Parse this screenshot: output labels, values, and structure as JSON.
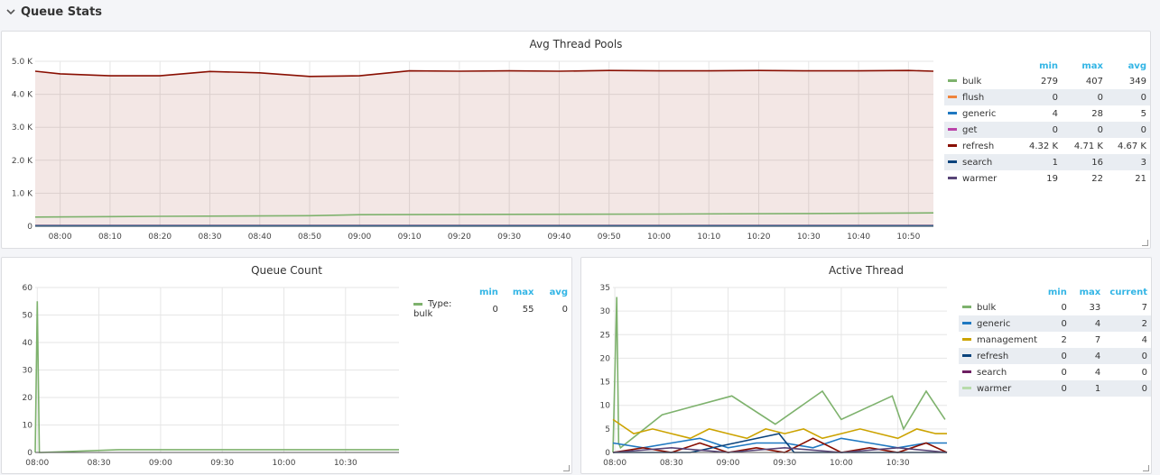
{
  "row": {
    "title": "Queue Stats"
  },
  "panels": {
    "avg_thread_pools": {
      "title": "Avg Thread Pools",
      "legend_headers": [
        "min",
        "max",
        "avg"
      ],
      "legend": [
        {
          "name": "bulk",
          "color": "#7eb26d",
          "min": "279",
          "max": "407",
          "avg": "349"
        },
        {
          "name": "flush",
          "color": "#ef843c",
          "min": "0",
          "max": "0",
          "avg": "0"
        },
        {
          "name": "generic",
          "color": "#1f78c1",
          "min": "4",
          "max": "28",
          "avg": "5"
        },
        {
          "name": "get",
          "color": "#ba43a9",
          "min": "0",
          "max": "0",
          "avg": "0"
        },
        {
          "name": "refresh",
          "color": "#890f02",
          "min": "4.32 K",
          "max": "4.71 K",
          "avg": "4.67 K"
        },
        {
          "name": "search",
          "color": "#0a437c",
          "min": "1",
          "max": "16",
          "avg": "3"
        },
        {
          "name": "warmer",
          "color": "#584477",
          "min": "19",
          "max": "22",
          "avg": "21"
        }
      ]
    },
    "queue_count": {
      "title": "Queue Count",
      "legend_headers": [
        "min",
        "max",
        "avg"
      ],
      "legend": [
        {
          "name": "Type: bulk",
          "color": "#7eb26d",
          "min": "0",
          "max": "55",
          "avg": "0"
        }
      ]
    },
    "active_thread": {
      "title": "Active Thread",
      "legend_headers": [
        "min",
        "max",
        "current"
      ],
      "legend": [
        {
          "name": "bulk",
          "color": "#7eb26d",
          "min": "0",
          "max": "33",
          "avg": "7"
        },
        {
          "name": "generic",
          "color": "#1f78c1",
          "min": "0",
          "max": "4",
          "avg": "2"
        },
        {
          "name": "management",
          "color": "#cca300",
          "min": "2",
          "max": "7",
          "avg": "4"
        },
        {
          "name": "refresh",
          "color": "#0a437c",
          "min": "0",
          "max": "4",
          "avg": "0"
        },
        {
          "name": "search",
          "color": "#6d1f62",
          "min": "0",
          "max": "4",
          "avg": "0"
        },
        {
          "name": "warmer",
          "color": "#b7dbab",
          "min": "0",
          "max": "1",
          "avg": "0"
        }
      ]
    }
  },
  "chart_data": [
    {
      "type": "line",
      "title": "Avg Thread Pools",
      "x_ticks": [
        "08:00",
        "08:10",
        "08:20",
        "08:30",
        "08:40",
        "08:50",
        "09:00",
        "09:10",
        "09:20",
        "09:30",
        "09:40",
        "09:50",
        "10:00",
        "10:10",
        "10:20",
        "10:30",
        "10:40",
        "10:50"
      ],
      "y_ticks": [
        "0",
        "1.0 K",
        "2.0 K",
        "3.0 K",
        "4.0 K",
        "5.0 K"
      ],
      "ylim": [
        0,
        5000
      ],
      "series": [
        {
          "name": "refresh",
          "x": [
            "07:55",
            "08:00",
            "08:10",
            "08:20",
            "08:30",
            "08:40",
            "08:50",
            "09:00",
            "09:10",
            "09:20",
            "09:30",
            "09:40",
            "09:50",
            "10:00",
            "10:10",
            "10:20",
            "10:30",
            "10:40",
            "10:50",
            "10:55"
          ],
          "values": [
            4700,
            4620,
            4560,
            4560,
            4690,
            4650,
            4540,
            4560,
            4710,
            4700,
            4710,
            4700,
            4720,
            4710,
            4710,
            4720,
            4710,
            4710,
            4720,
            4700
          ]
        },
        {
          "name": "bulk",
          "x": [
            "07:55",
            "08:20",
            "08:50",
            "09:00",
            "09:30",
            "10:00",
            "10:30",
            "10:55"
          ],
          "values": [
            280,
            300,
            320,
            350,
            360,
            370,
            385,
            405
          ]
        },
        {
          "name": "warmer",
          "x": [
            "07:55",
            "10:55"
          ],
          "values": [
            21,
            21
          ]
        },
        {
          "name": "generic",
          "x": [
            "07:55",
            "10:55"
          ],
          "values": [
            5,
            5
          ]
        }
      ]
    },
    {
      "type": "line",
      "title": "Queue Count",
      "x_ticks": [
        "08:00",
        "08:30",
        "09:00",
        "09:30",
        "10:00",
        "10:30"
      ],
      "y_ticks": [
        "0",
        "10",
        "20",
        "30",
        "40",
        "50",
        "60"
      ],
      "ylim": [
        0,
        60
      ],
      "series": [
        {
          "name": "Type: bulk",
          "x": [
            "07:59",
            "08:00",
            "08:01",
            "08:02",
            "08:40",
            "09:48",
            "10:12",
            "10:31",
            "10:56"
          ],
          "values": [
            0,
            55,
            0,
            0,
            1,
            1,
            1,
            1,
            1
          ]
        }
      ]
    },
    {
      "type": "line",
      "title": "Active Thread",
      "x_ticks": [
        "08:00",
        "08:30",
        "09:00",
        "09:30",
        "10:00",
        "10:30"
      ],
      "y_ticks": [
        "0",
        "5",
        "10",
        "15",
        "20",
        "25",
        "30",
        "35"
      ],
      "ylim": [
        0,
        35
      ],
      "series": [
        {
          "name": "bulk",
          "x": [
            "07:59",
            "08:01",
            "08:02",
            "08:03",
            "08:25",
            "09:02",
            "09:25",
            "09:50",
            "10:00",
            "10:27",
            "10:33",
            "10:45",
            "10:55"
          ],
          "values": [
            0,
            33,
            2,
            1,
            8,
            12,
            6,
            13,
            7,
            12,
            5,
            13,
            7
          ]
        },
        {
          "name": "management",
          "x": [
            "07:59",
            "08:10",
            "08:20",
            "08:30",
            "08:40",
            "08:50",
            "09:00",
            "09:10",
            "09:20",
            "09:30",
            "09:40",
            "09:50",
            "10:00",
            "10:10",
            "10:20",
            "10:30",
            "10:40",
            "10:50",
            "10:56"
          ],
          "values": [
            7,
            4,
            5,
            4,
            3,
            5,
            4,
            3,
            5,
            4,
            5,
            3,
            4,
            5,
            4,
            3,
            5,
            4,
            4
          ]
        },
        {
          "name": "generic",
          "x": [
            "07:59",
            "08:15",
            "08:30",
            "08:45",
            "09:00",
            "09:15",
            "09:30",
            "09:45",
            "10:00",
            "10:15",
            "10:30",
            "10:45",
            "10:56"
          ],
          "values": [
            2,
            1,
            2,
            3,
            1,
            2,
            2,
            1,
            3,
            2,
            1,
            2,
            2
          ]
        },
        {
          "name": "refresh",
          "x": [
            "07:59",
            "08:15",
            "08:30",
            "08:45",
            "09:00",
            "09:15",
            "09:30",
            "09:45",
            "10:00",
            "10:15",
            "10:30",
            "10:45",
            "10:56"
          ],
          "values": [
            0,
            1,
            0,
            2,
            0,
            1,
            0,
            3,
            0,
            1,
            0,
            2,
            0
          ]
        },
        {
          "name": "search",
          "x": [
            "07:59",
            "08:40",
            "09:27",
            "09:35",
            "10:56"
          ],
          "values": [
            0,
            0,
            4,
            0,
            0
          ]
        },
        {
          "name": "warmer",
          "x": [
            "07:59",
            "08:30",
            "09:00",
            "09:30",
            "10:00",
            "10:30",
            "10:56"
          ],
          "values": [
            0,
            1,
            0,
            1,
            0,
            1,
            0
          ]
        }
      ]
    }
  ]
}
